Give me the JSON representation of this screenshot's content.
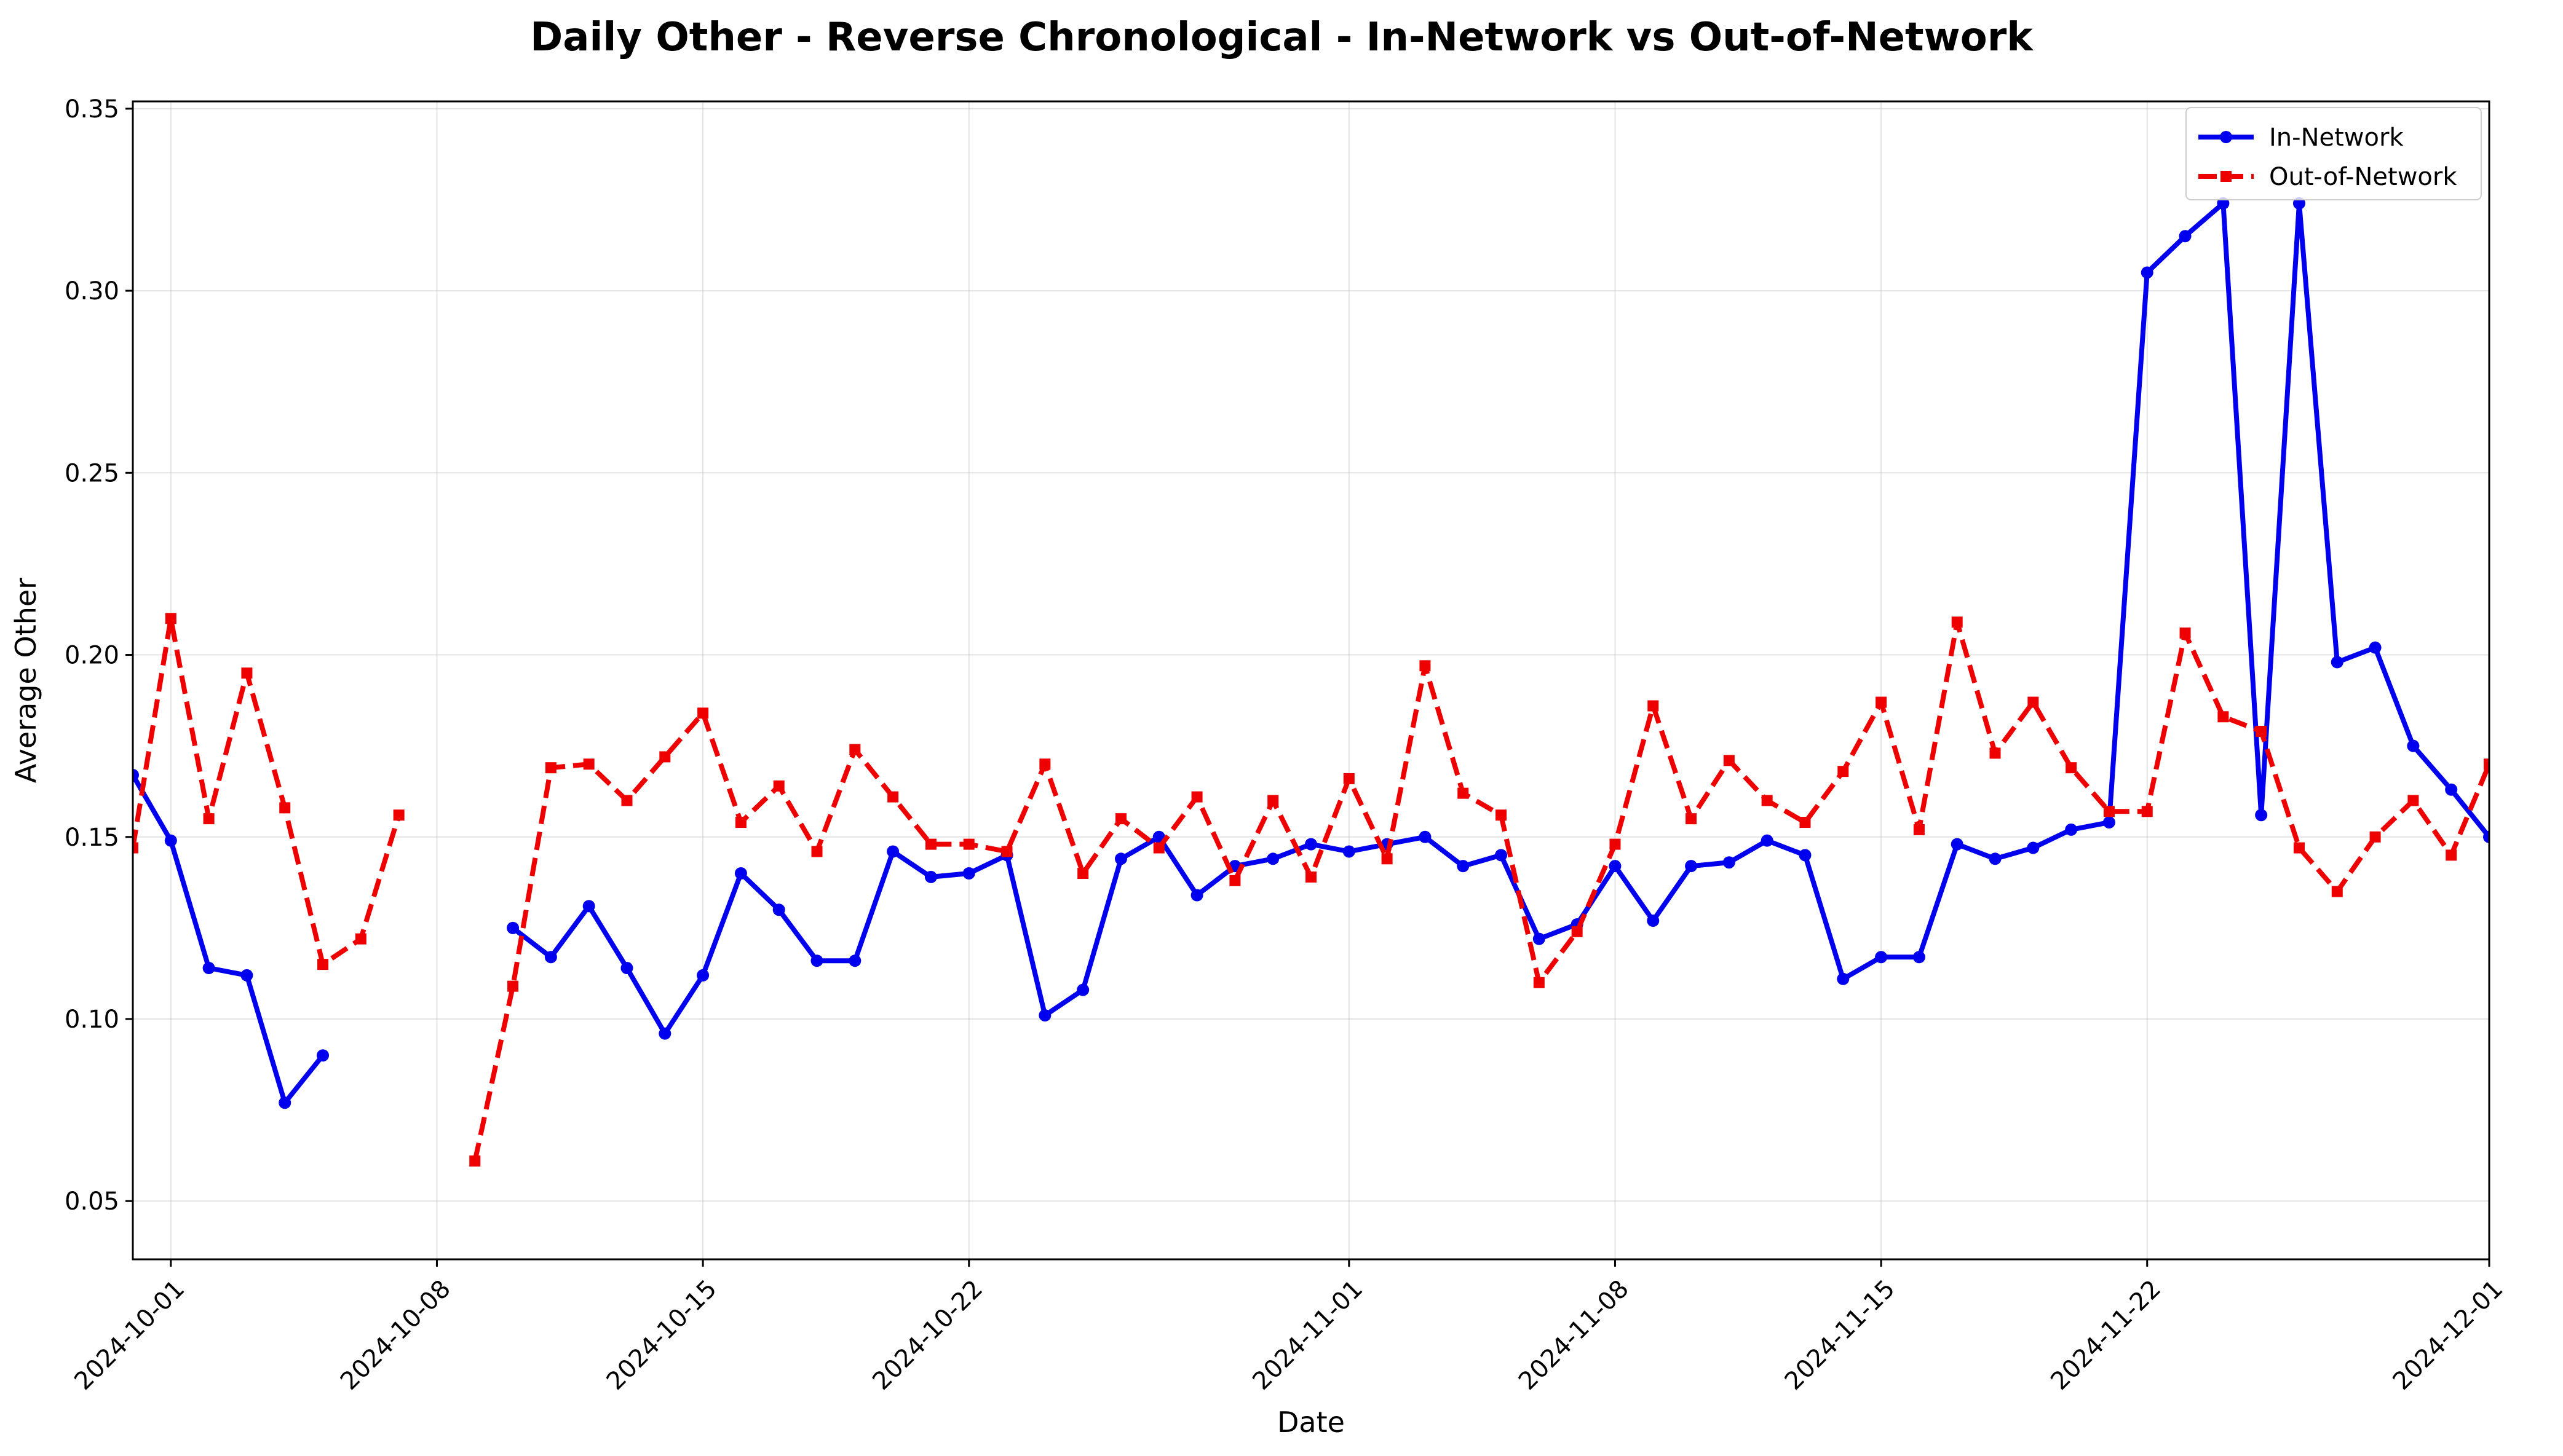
{
  "chart_data": {
    "type": "line",
    "title": "Daily Other - Reverse Chronological - In-Network vs Out-of-Network",
    "xlabel": "Date",
    "ylabel": "Average Other",
    "x_start": "2024-09-30",
    "xlim": [
      "2024-09-30",
      "2024-12-01"
    ],
    "ylim": [
      0.034,
      0.352
    ],
    "xticks": [
      "2024-10-01",
      "2024-10-08",
      "2024-10-15",
      "2024-10-22",
      "2024-11-01",
      "2024-11-08",
      "2024-11-15",
      "2024-11-22",
      "2024-12-01"
    ],
    "yticks": [
      "0.05",
      "0.10",
      "0.15",
      "0.20",
      "0.25",
      "0.30",
      "0.35"
    ],
    "grid": true,
    "legend_position": "top-right",
    "series": [
      {
        "name": "In-Network",
        "color": "#0000ee",
        "linestyle": "solid",
        "marker": "circle",
        "values": [
          0.167,
          0.149,
          0.114,
          0.112,
          0.077,
          0.09,
          null,
          null,
          null,
          null,
          0.125,
          0.117,
          0.131,
          0.114,
          0.096,
          0.112,
          0.14,
          0.13,
          0.116,
          0.116,
          0.146,
          0.139,
          0.14,
          0.145,
          0.101,
          0.108,
          0.144,
          0.15,
          0.134,
          0.142,
          0.144,
          0.148,
          0.146,
          0.148,
          0.15,
          0.142,
          0.145,
          0.122,
          0.126,
          0.142,
          0.127,
          0.142,
          0.143,
          0.149,
          0.145,
          0.111,
          0.117,
          0.117,
          0.148,
          0.144,
          0.147,
          0.152,
          0.154,
          0.305,
          0.315,
          0.324,
          0.156,
          0.324,
          0.198,
          0.202,
          0.175,
          0.163,
          0.15
        ]
      },
      {
        "name": "Out-of-Network",
        "color": "#ee0000",
        "linestyle": "dashed",
        "marker": "square",
        "values": [
          0.147,
          0.21,
          0.155,
          0.195,
          0.158,
          0.115,
          0.122,
          0.156,
          null,
          0.061,
          0.109,
          0.169,
          0.17,
          0.16,
          0.172,
          0.184,
          0.154,
          0.164,
          0.146,
          0.174,
          0.161,
          0.148,
          0.148,
          0.146,
          0.17,
          0.14,
          0.155,
          0.147,
          0.161,
          0.138,
          0.16,
          0.139,
          0.166,
          0.144,
          0.197,
          0.162,
          0.156,
          0.11,
          0.124,
          0.148,
          0.186,
          0.155,
          0.171,
          0.16,
          0.154,
          0.168,
          0.187,
          0.152,
          0.209,
          0.173,
          0.187,
          0.169,
          0.157,
          0.157,
          0.206,
          0.183,
          0.179,
          0.147,
          0.135,
          0.15,
          0.16,
          0.145,
          0.17
        ]
      }
    ]
  }
}
